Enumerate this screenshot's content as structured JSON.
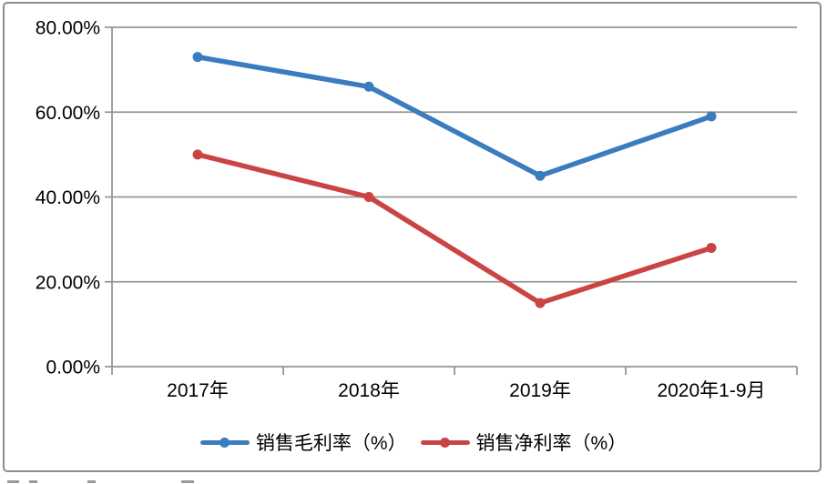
{
  "chart_data": {
    "type": "line",
    "categories": [
      "2017年",
      "2018年",
      "2019年",
      "2020年1-9月"
    ],
    "series": [
      {
        "name": "销售毛利率（%）",
        "color": "#3b7cbe",
        "values": [
          73,
          66,
          45,
          59
        ]
      },
      {
        "name": "销售净利率（%）",
        "color": "#c94443",
        "values": [
          50,
          40,
          15,
          28
        ]
      }
    ],
    "title": "",
    "xlabel": "",
    "ylabel": "",
    "ylim": [
      0,
      80
    ],
    "yticks": [
      0,
      20,
      40,
      60,
      80
    ],
    "ytick_labels": [
      "0.00%",
      "20.00%",
      "40.00%",
      "60.00%",
      "80.00%"
    ],
    "grid": true,
    "legend_position": "bottom",
    "marker": "circle"
  },
  "colors": {
    "grid": "#969696",
    "axis": "#969696",
    "frame_border": "#8c8c8c",
    "text": "#000000",
    "background": "#ffffff"
  }
}
